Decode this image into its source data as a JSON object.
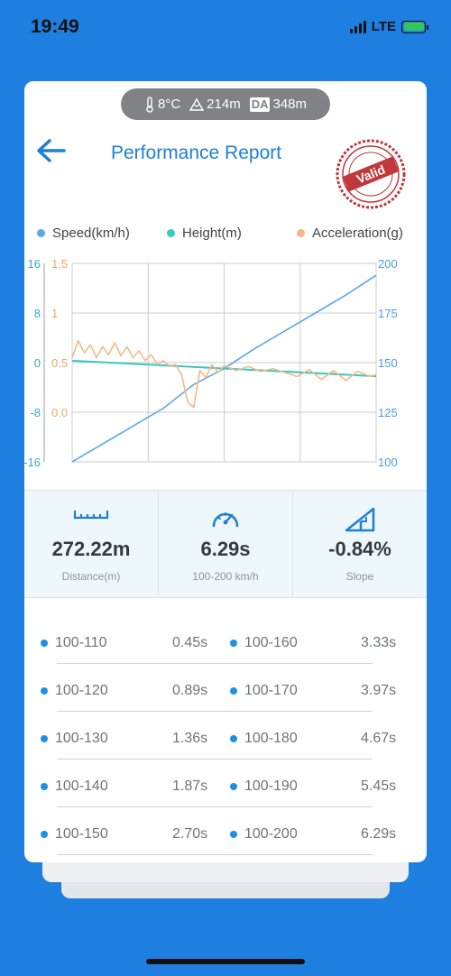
{
  "status_bar": {
    "time": "19:49",
    "network": "LTE"
  },
  "environment": {
    "temperature": "8°C",
    "altitude": "214m",
    "da_label": "DA",
    "density_altitude": "348m"
  },
  "header": {
    "title": "Performance Report",
    "stamp_text": "Valid"
  },
  "legend": [
    {
      "label": "Speed(km/h)",
      "color": "#5aa8ea"
    },
    {
      "label": "Height(m)",
      "color": "#3cc7c1"
    },
    {
      "label": "Acceleration(g)",
      "color": "#f2b98a"
    }
  ],
  "chart_data": {
    "type": "line",
    "series": [
      {
        "name": "Speed(km/h)",
        "axis": "right",
        "color": "#5aa8ea",
        "x": [
          0,
          1,
          2,
          3,
          4,
          5,
          6,
          7,
          8,
          9,
          10
        ],
        "values": [
          100,
          109,
          118,
          127,
          139,
          147,
          157,
          166,
          175,
          184,
          194
        ]
      },
      {
        "name": "Height(m)",
        "axis": "left-outer",
        "color": "#3cc7c1",
        "x": [
          0,
          10
        ],
        "values": [
          0.3,
          -2.2
        ]
      },
      {
        "name": "Acceleration(g)",
        "axis": "left-inner",
        "color": "#f2b98a",
        "x": [
          0,
          0.2,
          0.4,
          0.6,
          0.8,
          1.0,
          1.2,
          1.4,
          1.6,
          1.8,
          2.0,
          2.2,
          2.4,
          2.6,
          2.8,
          3.0,
          3.2,
          3.4,
          3.6,
          3.8,
          4.0,
          4.2,
          4.4,
          4.6,
          4.8,
          5.0,
          5.4,
          5.8,
          6.2,
          6.6,
          7.0,
          7.4,
          7.8,
          8.2,
          8.6,
          9.0,
          9.4,
          9.8,
          10.0
        ],
        "values": [
          0.55,
          0.72,
          0.6,
          0.68,
          0.55,
          0.66,
          0.58,
          0.7,
          0.57,
          0.66,
          0.55,
          0.62,
          0.52,
          0.58,
          0.48,
          0.52,
          0.46,
          0.48,
          0.38,
          0.1,
          0.05,
          0.42,
          0.35,
          0.48,
          0.4,
          0.47,
          0.42,
          0.46,
          0.41,
          0.44,
          0.4,
          0.36,
          0.43,
          0.33,
          0.42,
          0.32,
          0.41,
          0.36,
          0.38
        ]
      }
    ],
    "axes": {
      "left_outer": {
        "ticks": [
          "16",
          "8",
          "0",
          "-8",
          "-16"
        ],
        "range": [
          -16,
          16
        ]
      },
      "left_inner": {
        "ticks": [
          "1.5",
          "1",
          "0.5",
          "0.0"
        ],
        "range": [
          -0.5,
          1.5
        ]
      },
      "right": {
        "ticks": [
          "200",
          "175",
          "150",
          "125",
          "100"
        ],
        "range": [
          100,
          200
        ]
      }
    },
    "grid": true
  },
  "stats": [
    {
      "icon": "ruler-icon",
      "value": "272.22m",
      "label": "Distance(m)"
    },
    {
      "icon": "speedometer-icon",
      "value": "6.29s",
      "label": "100-200 km/h"
    },
    {
      "icon": "slope-icon",
      "value": "-0.84%",
      "label": "Slope"
    }
  ],
  "splits": [
    {
      "left_range": "100-110",
      "left_time": "0.45s",
      "right_range": "100-160",
      "right_time": "3.33s"
    },
    {
      "left_range": "100-120",
      "left_time": "0.89s",
      "right_range": "100-170",
      "right_time": "3.97s"
    },
    {
      "left_range": "100-130",
      "left_time": "1.36s",
      "right_range": "100-180",
      "right_time": "4.67s"
    },
    {
      "left_range": "100-140",
      "left_time": "1.87s",
      "right_range": "100-190",
      "right_time": "5.45s"
    },
    {
      "left_range": "100-150",
      "left_time": "2.70s",
      "right_range": "100-200",
      "right_time": "6.29s"
    }
  ]
}
